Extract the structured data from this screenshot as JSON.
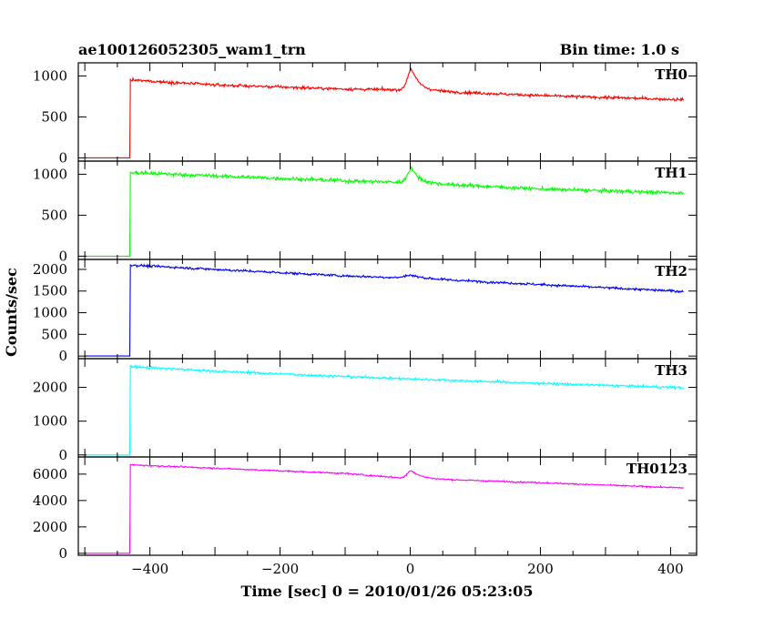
{
  "header": {
    "left_title": "ae100126052305_wam1_trn",
    "right_title": "Bin time: 1.0 s"
  },
  "axes": {
    "ylabel": "Counts/sec",
    "xlabel": "Time [sec] 0 = 2010/01/26 05:23:05",
    "xlim": [
      -510,
      440
    ],
    "xticks": [
      -400,
      -200,
      0,
      200,
      400
    ],
    "xtick_labels": [
      "−400",
      "−200",
      "0",
      "200",
      "400"
    ]
  },
  "chart_data": [
    {
      "type": "line",
      "name": "TH0",
      "color": "#ff0000",
      "ylim": [
        -40,
        1160
      ],
      "yticks": [
        0,
        500,
        1000
      ],
      "ytick_labels": [
        "0",
        "500",
        "1000"
      ],
      "pre_level": 0,
      "onset": -430,
      "trend": [
        [
          -430,
          950
        ],
        [
          -300,
          890
        ],
        [
          -100,
          840
        ],
        [
          -10,
          830
        ],
        [
          200,
          760
        ],
        [
          420,
          710
        ]
      ],
      "noise": 22,
      "peak": {
        "x": 2,
        "height": 260,
        "rise": 6,
        "decay": 12
      }
    },
    {
      "type": "line",
      "name": "TH1",
      "color": "#00ff00",
      "ylim": [
        -40,
        1160
      ],
      "yticks": [
        0,
        500,
        1000
      ],
      "ytick_labels": [
        "0",
        "500",
        "1000"
      ],
      "pre_level": 0,
      "onset": -430,
      "trend": [
        [
          -430,
          1020
        ],
        [
          -300,
          980
        ],
        [
          -100,
          920
        ],
        [
          -10,
          900
        ],
        [
          200,
          820
        ],
        [
          420,
          770
        ]
      ],
      "noise": 28,
      "peak": {
        "x": 2,
        "height": 180,
        "rise": 6,
        "decay": 12
      }
    },
    {
      "type": "line",
      "name": "TH2",
      "color": "#0000ff",
      "ylim": [
        -60,
        2230
      ],
      "yticks": [
        0,
        500,
        1000,
        1500,
        2000
      ],
      "ytick_labels": [
        "0",
        "500",
        "1000",
        "1500",
        "2000"
      ],
      "pre_level": 0,
      "onset": -430,
      "trend": [
        [
          -430,
          2100
        ],
        [
          -300,
          2000
        ],
        [
          -100,
          1850
        ],
        [
          0,
          1800
        ],
        [
          200,
          1650
        ],
        [
          420,
          1490
        ]
      ],
      "noise": 35,
      "peak": {
        "x": 0,
        "height": 70,
        "rise": 8,
        "decay": 20
      }
    },
    {
      "type": "line",
      "name": "TH3",
      "color": "#00ffff",
      "ylim": [
        -60,
        2850
      ],
      "yticks": [
        0,
        1000,
        2000
      ],
      "ytick_labels": [
        "0",
        "1000",
        "2000"
      ],
      "pre_level": 0,
      "onset": -430,
      "trend": [
        [
          -430,
          2620
        ],
        [
          -300,
          2480
        ],
        [
          -100,
          2320
        ],
        [
          0,
          2250
        ],
        [
          200,
          2120
        ],
        [
          420,
          1990
        ]
      ],
      "noise": 45,
      "peak": {
        "x": 0,
        "height": 0,
        "rise": 6,
        "decay": 12
      }
    },
    {
      "type": "line",
      "name": "TH0123",
      "color": "#ff00ff",
      "ylim": [
        -150,
        7300
      ],
      "yticks": [
        0,
        2000,
        4000,
        6000
      ],
      "ytick_labels": [
        "0",
        "2000",
        "4000",
        "6000"
      ],
      "pre_level": 0,
      "onset": -430,
      "trend": [
        [
          -430,
          6700
        ],
        [
          -300,
          6450
        ],
        [
          -100,
          6050
        ],
        [
          -10,
          5700
        ],
        [
          200,
          5350
        ],
        [
          420,
          4950
        ]
      ],
      "noise": 70,
      "peak": {
        "x": 2,
        "height": 600,
        "rise": 6,
        "decay": 14
      }
    }
  ]
}
